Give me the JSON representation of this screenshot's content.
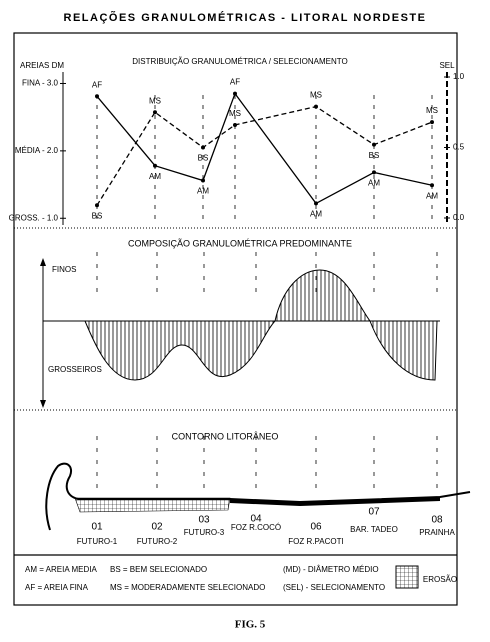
{
  "title": "RELAÇÕES GRANULOMÉTRICAS - LITORAL  NORDESTE",
  "chart_data": {
    "type": "line",
    "title": "DISTRIBUIÇÃO GRANULOMÉTRICA  /  SELECIONAMENTO",
    "y_label": "AREIAS  DM",
    "y2_label": "SEL",
    "ylim": [
      -0.9,
      -3.2
    ],
    "yticks": [
      {
        "value": -3,
        "label": "FINA - 3.0"
      },
      {
        "value": -2,
        "label": "MÉDIA - 2.0"
      },
      {
        "value": -1,
        "label": "GROSS. - 1.0"
      }
    ],
    "y2lim": [
      0,
      1
    ],
    "y2ticks": [
      {
        "value": 1,
        "label": "1.0"
      },
      {
        "value": 0.5,
        "label": "0.5"
      },
      {
        "value": 0,
        "label": "0.0"
      }
    ],
    "series": [
      {
        "color": "#000000",
        "dashed": false,
        "values": [
          -2.81,
          -1.78,
          -1.56,
          -2.85,
          -1.22,
          -1.68,
          -1.49
        ],
        "point_labels": [
          "AF",
          "AM",
          "AM",
          "AF",
          "AM",
          "AM",
          "AM"
        ]
      },
      {
        "color": "#000000",
        "dashed": true,
        "axis": "y2",
        "values": [
          0.09,
          0.75,
          0.5,
          0.66,
          0.79,
          0.52,
          0.68
        ],
        "point_labels": [
          "BS",
          "MS",
          "BS",
          "MS",
          "MS",
          "BS",
          "MS"
        ]
      }
    ]
  },
  "composition": {
    "title": "COMPOSIÇÃO GRANULOMÉTRICA PREDOMINANTE",
    "fine_label": "FINOS",
    "coarse_label": "GROSSEIROS"
  },
  "coast": {
    "title": "CONTORNO LITORÂNEO",
    "stations": [
      {
        "number": "01",
        "name": "FUTURO-1"
      },
      {
        "number": "02",
        "name": "FUTURO-2"
      },
      {
        "number": "03",
        "name": "FUTURO-3"
      },
      {
        "number": "04",
        "name": "FOZ R.COCÓ"
      },
      {
        "number": "06",
        "name": "FOZ R.PACOTI"
      },
      {
        "number": "07",
        "name": "BAR. TADEO"
      },
      {
        "number": "08",
        "name": "PRAINHA"
      }
    ]
  },
  "legend": {
    "items": [
      "AM = AREIA MEDIA",
      "AF = AREIA FINA",
      "BS = BEM SELECIONADO",
      "MS = MODERADAMENTE SELECIONADO",
      "(MD) - DIÂMETRO MÉDIO",
      "(SEL) - SELECIONAMENTO"
    ],
    "erosion_label": "EROSÃO"
  },
  "caption": "FIG. 5"
}
